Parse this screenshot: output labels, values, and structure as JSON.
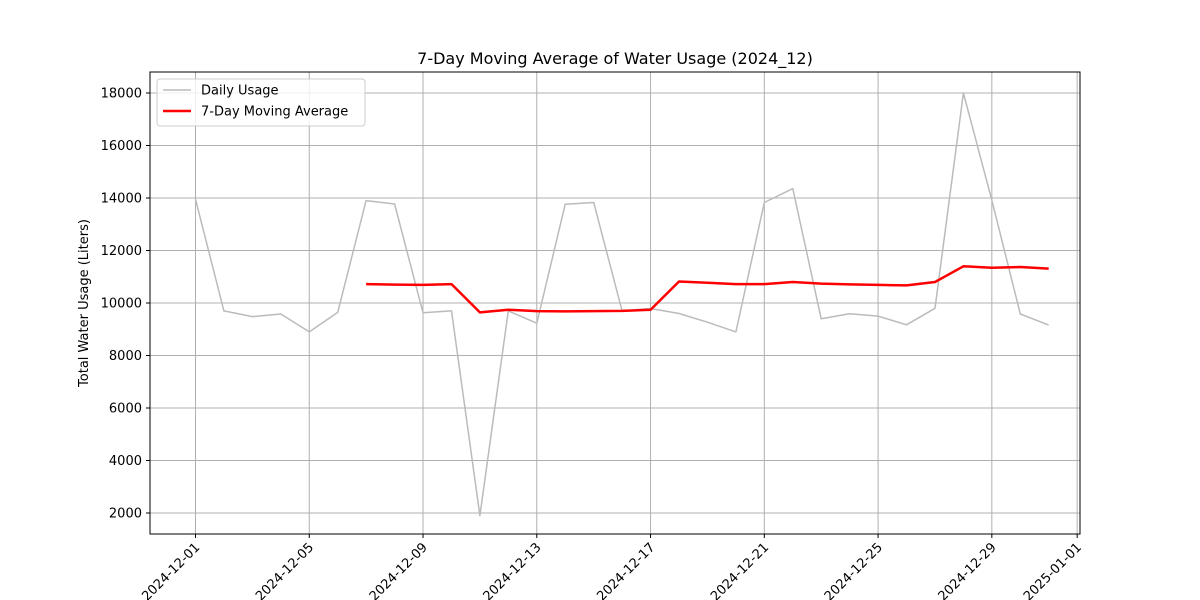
{
  "chart_data": {
    "type": "line",
    "title": "7-Day Moving Average of Water Usage (2024_12)",
    "xlabel": "",
    "ylabel": "Total Water Usage (Liters)",
    "xlim": [
      "2024-11-29",
      "2025-01-01"
    ],
    "ylim": [
      1200,
      18800
    ],
    "grid": true,
    "legend_position": "top-left",
    "x_ticks": [
      "2024-12-01",
      "2024-12-05",
      "2024-12-09",
      "2024-12-13",
      "2024-12-17",
      "2024-12-21",
      "2024-12-25",
      "2024-12-29",
      "2025-01-01"
    ],
    "y_ticks": [
      2000,
      4000,
      6000,
      8000,
      10000,
      12000,
      14000,
      16000,
      18000
    ],
    "x": [
      "2024-12-01",
      "2024-12-02",
      "2024-12-03",
      "2024-12-04",
      "2024-12-05",
      "2024-12-06",
      "2024-12-07",
      "2024-12-08",
      "2024-12-09",
      "2024-12-10",
      "2024-12-11",
      "2024-12-12",
      "2024-12-13",
      "2024-12-14",
      "2024-12-15",
      "2024-12-16",
      "2024-12-17",
      "2024-12-18",
      "2024-12-19",
      "2024-12-20",
      "2024-12-21",
      "2024-12-22",
      "2024-12-23",
      "2024-12-24",
      "2024-12-25",
      "2024-12-26",
      "2024-12-27",
      "2024-12-28",
      "2024-12-29",
      "2024-12-30",
      "2024-12-31"
    ],
    "series": [
      {
        "name": "Daily Usage",
        "color": "#bbbbbb",
        "values": [
          13950,
          9700,
          9480,
          9580,
          8900,
          9640,
          13900,
          13770,
          9630,
          9700,
          1900,
          9700,
          9230,
          13760,
          13830,
          9700,
          9790,
          9600,
          9270,
          8900,
          13830,
          14360,
          9400,
          9590,
          9500,
          9170,
          9800,
          18000,
          13920,
          9580,
          9160
        ]
      },
      {
        "name": "7-Day Moving Average",
        "color": "#ff0000",
        "values": [
          null,
          null,
          null,
          null,
          null,
          null,
          10720,
          10700,
          10690,
          10720,
          9640,
          9740,
          9690,
          9680,
          9690,
          9700,
          9740,
          10820,
          10770,
          10720,
          10720,
          10800,
          10740,
          10710,
          10690,
          10670,
          10800,
          11400,
          11340,
          11370,
          11310
        ]
      }
    ]
  }
}
